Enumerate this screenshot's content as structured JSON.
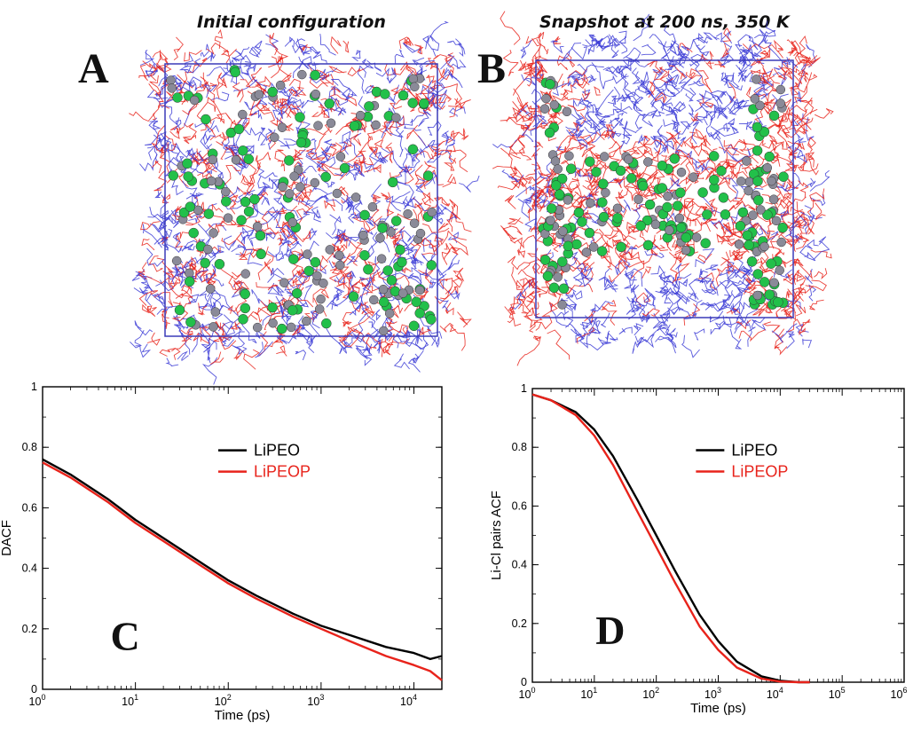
{
  "colors": {
    "black": "#000000",
    "red": "#e8231b",
    "blue": "#3b3bd6",
    "green": "#22c04a",
    "grey": "#8a8a98"
  },
  "panels": {
    "a": {
      "title": "Initial configuration",
      "letter": "A"
    },
    "b": {
      "title": "Snapshot at 200 ns, 350 K",
      "letter": "B"
    }
  },
  "chart_data": [
    {
      "id": "C",
      "type": "line",
      "letter": "C",
      "xlabel": "Time (ps)",
      "ylabel": "DACF",
      "xscale": "log",
      "xlim": [
        1,
        20000
      ],
      "ylim": [
        0,
        1
      ],
      "xticks": [
        1,
        10,
        100,
        1000,
        10000
      ],
      "yticks": [
        0,
        0.2,
        0.4,
        0.6,
        0.8,
        1
      ],
      "legend_position": "center-right",
      "series": [
        {
          "name": "LiPEO",
          "color": "#000000",
          "x": [
            1,
            2,
            5,
            10,
            20,
            50,
            100,
            200,
            500,
            1000,
            2000,
            5000,
            10000,
            15000,
            20000
          ],
          "y": [
            0.76,
            0.71,
            0.63,
            0.56,
            0.5,
            0.42,
            0.36,
            0.31,
            0.25,
            0.21,
            0.18,
            0.14,
            0.12,
            0.1,
            0.11
          ]
        },
        {
          "name": "LiPEOP",
          "color": "#e8231b",
          "x": [
            1,
            2,
            5,
            10,
            20,
            50,
            100,
            200,
            500,
            1000,
            2000,
            5000,
            10000,
            15000,
            20000
          ],
          "y": [
            0.75,
            0.7,
            0.62,
            0.55,
            0.49,
            0.41,
            0.35,
            0.3,
            0.24,
            0.2,
            0.16,
            0.11,
            0.08,
            0.06,
            0.03
          ]
        }
      ]
    },
    {
      "id": "D",
      "type": "line",
      "letter": "D",
      "xlabel": "Time (ps)",
      "ylabel": "Li-Cl pairs ACF",
      "xscale": "log",
      "xlim": [
        1,
        1000000
      ],
      "ylim": [
        0,
        1
      ],
      "xticks": [
        1,
        10,
        100,
        1000,
        10000,
        100000,
        1000000
      ],
      "yticks": [
        0,
        0.2,
        0.4,
        0.6,
        0.8,
        1
      ],
      "legend_position": "center-right",
      "series": [
        {
          "name": "LiPEO",
          "color": "#000000",
          "x": [
            1,
            2,
            5,
            10,
            20,
            50,
            100,
            200,
            500,
            1000,
            2000,
            5000,
            10000,
            20000,
            30000
          ],
          "y": [
            0.98,
            0.96,
            0.92,
            0.86,
            0.77,
            0.62,
            0.5,
            0.38,
            0.23,
            0.14,
            0.07,
            0.02,
            0.005,
            0,
            0
          ]
        },
        {
          "name": "LiPEOP",
          "color": "#e8231b",
          "x": [
            1,
            2,
            5,
            10,
            20,
            50,
            100,
            200,
            500,
            1000,
            2000,
            5000,
            10000,
            20000,
            30000
          ],
          "y": [
            0.98,
            0.96,
            0.91,
            0.84,
            0.74,
            0.58,
            0.46,
            0.34,
            0.19,
            0.11,
            0.05,
            0.012,
            0.002,
            0,
            0
          ]
        }
      ]
    }
  ]
}
